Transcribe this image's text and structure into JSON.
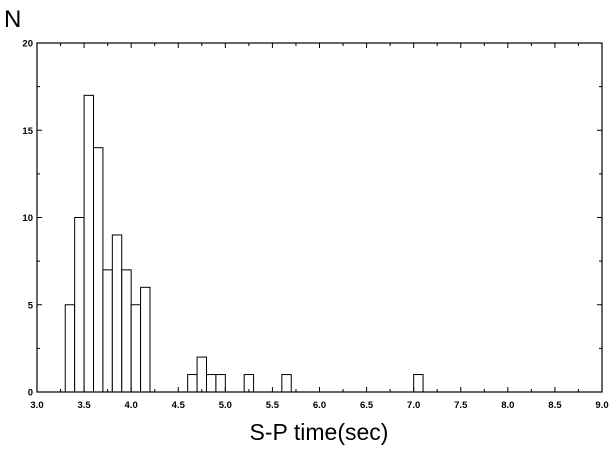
{
  "chart_data": {
    "type": "bar",
    "ylabel": "N",
    "xlabel": "S-P time(sec)",
    "xlim": [
      3.0,
      9.0
    ],
    "ylim": [
      0,
      20
    ],
    "bin_width": 0.1,
    "x_ticks": [
      "3.0",
      "3.5",
      "4.0",
      "4.5",
      "5.0",
      "5.5",
      "6.0",
      "6.5",
      "7.0",
      "7.5",
      "8.0",
      "8.5",
      "9.0"
    ],
    "y_ticks": [
      "0",
      "5",
      "10",
      "15",
      "20"
    ],
    "bins": [
      {
        "x": 3.35,
        "value": 5
      },
      {
        "x": 3.45,
        "value": 10
      },
      {
        "x": 3.55,
        "value": 17
      },
      {
        "x": 3.65,
        "value": 14
      },
      {
        "x": 3.75,
        "value": 7
      },
      {
        "x": 3.85,
        "value": 9
      },
      {
        "x": 3.95,
        "value": 7
      },
      {
        "x": 4.05,
        "value": 5
      },
      {
        "x": 4.15,
        "value": 6
      },
      {
        "x": 4.65,
        "value": 1
      },
      {
        "x": 4.75,
        "value": 2
      },
      {
        "x": 4.85,
        "value": 1
      },
      {
        "x": 4.95,
        "value": 1
      },
      {
        "x": 5.25,
        "value": 1
      },
      {
        "x": 5.65,
        "value": 1
      },
      {
        "x": 7.05,
        "value": 1
      }
    ],
    "grid": false,
    "legend": "none"
  }
}
